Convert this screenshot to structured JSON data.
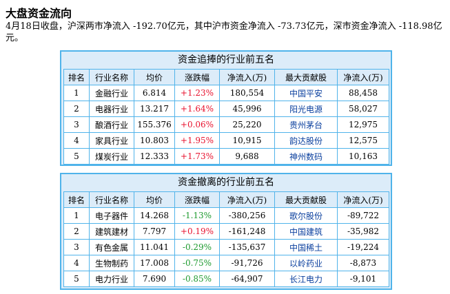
{
  "page": {
    "title": "大盘资金流向",
    "summary": "4月18日收盘，沪深两市净流入 -192.70亿元，其中沪市资金净流入 -73.73亿元，深市资金净流入 -118.98亿元。"
  },
  "headers": [
    "排名",
    "行业名称",
    "均价",
    "涨跌幅",
    "净流入(万)",
    "最大贡献股",
    "净流入(万)"
  ],
  "inflow_table": {
    "title": "资金追捧的行业前五名",
    "rows": [
      {
        "rank": "1",
        "industry": "金融行业",
        "avg_price": "6.814",
        "change": "+1.23%",
        "net_inflow": "180,554",
        "top_stock": "中国平安",
        "stock_inflow": "88,458"
      },
      {
        "rank": "2",
        "industry": "电器行业",
        "avg_price": "13.217",
        "change": "+1.64%",
        "net_inflow": "45,996",
        "top_stock": "阳光电源",
        "stock_inflow": "58,027"
      },
      {
        "rank": "3",
        "industry": "酿酒行业",
        "avg_price": "155.376",
        "change": "+0.06%",
        "net_inflow": "25,220",
        "top_stock": "贵州茅台",
        "stock_inflow": "12,975"
      },
      {
        "rank": "4",
        "industry": "家具行业",
        "avg_price": "10.803",
        "change": "+1.95%",
        "net_inflow": "10,915",
        "top_stock": "韵达股份",
        "stock_inflow": "12,575"
      },
      {
        "rank": "5",
        "industry": "煤炭行业",
        "avg_price": "12.333",
        "change": "+1.73%",
        "net_inflow": "9,688",
        "top_stock": "神州数码",
        "stock_inflow": "10,163"
      }
    ]
  },
  "outflow_table": {
    "title": "资金撤离的行业前五名",
    "rows": [
      {
        "rank": "1",
        "industry": "电子器件",
        "avg_price": "14.268",
        "change": "-1.13%",
        "net_inflow": "-380,256",
        "top_stock": "歌尔股份",
        "stock_inflow": "-89,722"
      },
      {
        "rank": "2",
        "industry": "建筑建材",
        "avg_price": "7.797",
        "change": "+0.19%",
        "net_inflow": "-161,248",
        "top_stock": "中国建筑",
        "stock_inflow": "-35,982"
      },
      {
        "rank": "3",
        "industry": "有色金属",
        "avg_price": "11.041",
        "change": "-0.29%",
        "net_inflow": "-135,637",
        "top_stock": "中国稀土",
        "stock_inflow": "-19,224"
      },
      {
        "rank": "4",
        "industry": "生物制药",
        "avg_price": "17.008",
        "change": "-0.75%",
        "net_inflow": "-91,726",
        "top_stock": "以岭药业",
        "stock_inflow": "-8,873"
      },
      {
        "rank": "5",
        "industry": "电力行业",
        "avg_price": "7.690",
        "change": "-0.85%",
        "net_inflow": "-64,907",
        "top_stock": "长江电力",
        "stock_inflow": "-9,101"
      }
    ]
  },
  "colors": {
    "up": "#e8112d",
    "down": "#1d9a2e",
    "link": "#0a3f9e",
    "border": "#4fb3ea",
    "panel_bg": "#dcecf9"
  }
}
